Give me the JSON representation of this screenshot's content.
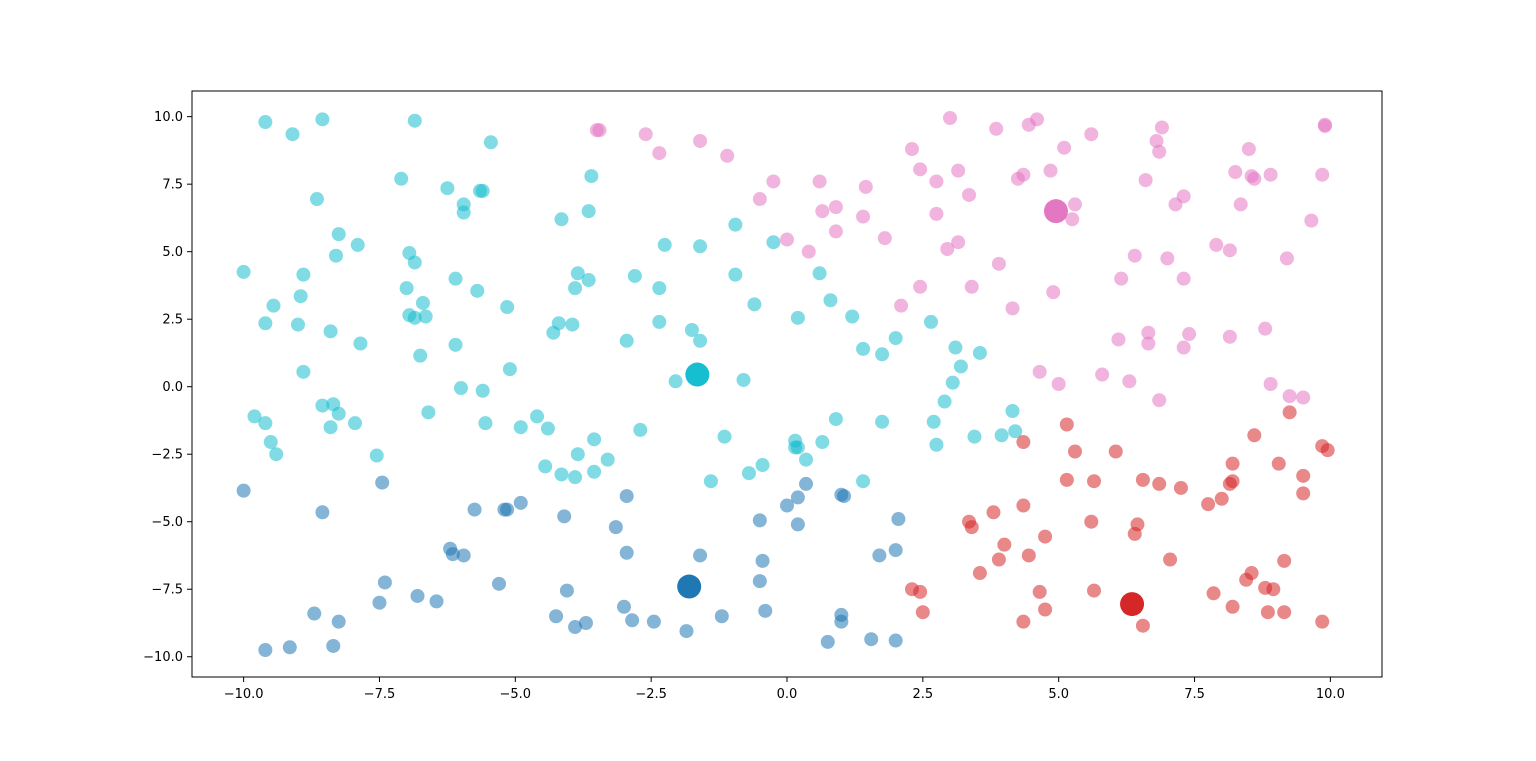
{
  "chart_data": {
    "type": "scatter",
    "title": "",
    "xlabel": "",
    "ylabel": "",
    "xlim": [
      -10.95,
      10.95
    ],
    "ylim": [
      -10.75,
      10.95
    ],
    "xticks": [
      -10.0,
      -7.5,
      -5.0,
      -2.5,
      0.0,
      2.5,
      5.0,
      7.5,
      10.0
    ],
    "yticks": [
      -10.0,
      -7.5,
      -5.0,
      -2.5,
      0.0,
      2.5,
      5.0,
      7.5,
      10.0
    ],
    "xtick_labels": [
      "−10.0",
      "−7.5",
      "−5.0",
      "−2.5",
      "0.0",
      "2.5",
      "5.0",
      "7.5",
      "10.0"
    ],
    "ytick_labels": [
      "−10.0",
      "−7.5",
      "−5.0",
      "−2.5",
      "0.0",
      "2.5",
      "5.0",
      "7.5",
      "10.0"
    ],
    "grid": false,
    "point_opacity": 0.55,
    "centroid_opacity": 1.0,
    "series": [
      {
        "color": "#17becf",
        "centroid": [
          -1.65,
          0.45
        ],
        "points": [
          [
            -9.6,
            9.8
          ],
          [
            -9.1,
            9.35
          ],
          [
            -8.55,
            9.9
          ],
          [
            -6.85,
            9.85
          ],
          [
            -5.45,
            9.05
          ],
          [
            -8.65,
            6.95
          ],
          [
            -7.1,
            7.7
          ],
          [
            -6.25,
            7.35
          ],
          [
            -5.95,
            6.75
          ],
          [
            -5.95,
            6.45
          ],
          [
            -5.65,
            7.25
          ],
          [
            -5.6,
            7.25
          ],
          [
            -3.6,
            7.8
          ],
          [
            -3.65,
            6.5
          ],
          [
            -4.15,
            6.2
          ],
          [
            -10.0,
            4.25
          ],
          [
            -8.25,
            5.65
          ],
          [
            -7.9,
            5.25
          ],
          [
            -8.3,
            4.85
          ],
          [
            -8.9,
            4.15
          ],
          [
            -6.95,
            4.95
          ],
          [
            -6.85,
            4.6
          ],
          [
            -6.1,
            4.0
          ],
          [
            -5.7,
            3.55
          ],
          [
            -3.85,
            4.2
          ],
          [
            -3.9,
            3.65
          ],
          [
            -3.65,
            3.95
          ],
          [
            -2.8,
            4.1
          ],
          [
            -2.35,
            3.65
          ],
          [
            -2.25,
            5.25
          ],
          [
            -1.6,
            5.2
          ],
          [
            -0.95,
            6.0
          ],
          [
            -0.95,
            4.15
          ],
          [
            -0.25,
            5.35
          ],
          [
            0.6,
            4.2
          ],
          [
            0.8,
            3.2
          ],
          [
            -0.6,
            3.05
          ],
          [
            -9.45,
            3.0
          ],
          [
            -9.6,
            2.35
          ],
          [
            -9.0,
            2.3
          ],
          [
            -8.95,
            3.35
          ],
          [
            -8.4,
            2.05
          ],
          [
            -7.85,
            1.6
          ],
          [
            -6.95,
            2.65
          ],
          [
            -6.85,
            2.55
          ],
          [
            -6.7,
            3.1
          ],
          [
            -6.65,
            2.6
          ],
          [
            -7.0,
            3.65
          ],
          [
            -5.15,
            2.95
          ],
          [
            -4.2,
            2.35
          ],
          [
            -3.95,
            2.3
          ],
          [
            -4.3,
            2.0
          ],
          [
            -2.95,
            1.7
          ],
          [
            -2.35,
            2.4
          ],
          [
            -1.75,
            2.1
          ],
          [
            -1.6,
            1.7
          ],
          [
            0.2,
            2.55
          ],
          [
            1.2,
            2.6
          ],
          [
            2.65,
            2.4
          ],
          [
            -6.75,
            1.15
          ],
          [
            -6.1,
            1.55
          ],
          [
            -8.9,
            0.55
          ],
          [
            -5.1,
            0.65
          ],
          [
            -2.05,
            0.2
          ],
          [
            -0.8,
            0.25
          ],
          [
            1.4,
            1.4
          ],
          [
            1.75,
            1.2
          ],
          [
            2.0,
            1.8
          ],
          [
            3.1,
            1.45
          ],
          [
            3.2,
            0.75
          ],
          [
            3.05,
            0.15
          ],
          [
            3.55,
            1.25
          ],
          [
            -6.0,
            -0.05
          ],
          [
            -5.6,
            -0.15
          ],
          [
            -9.8,
            -1.1
          ],
          [
            -9.6,
            -1.35
          ],
          [
            -8.55,
            -0.7
          ],
          [
            -8.35,
            -0.65
          ],
          [
            -8.25,
            -1.0
          ],
          [
            -8.4,
            -1.5
          ],
          [
            -7.95,
            -1.35
          ],
          [
            -9.5,
            -2.05
          ],
          [
            -9.4,
            -2.5
          ],
          [
            -6.6,
            -0.95
          ],
          [
            -5.55,
            -1.35
          ],
          [
            -4.9,
            -1.5
          ],
          [
            -4.6,
            -1.1
          ],
          [
            -4.4,
            -1.55
          ],
          [
            -3.55,
            -1.95
          ],
          [
            -3.85,
            -2.5
          ],
          [
            -2.7,
            -1.6
          ],
          [
            -1.15,
            -1.85
          ],
          [
            0.15,
            -2.0
          ],
          [
            0.15,
            -2.25
          ],
          [
            0.2,
            -2.25
          ],
          [
            0.65,
            -2.05
          ],
          [
            0.9,
            -1.2
          ],
          [
            1.75,
            -1.3
          ],
          [
            2.9,
            -0.55
          ],
          [
            2.7,
            -1.3
          ],
          [
            2.75,
            -2.15
          ],
          [
            3.45,
            -1.85
          ],
          [
            3.95,
            -1.8
          ],
          [
            4.15,
            -0.9
          ],
          [
            4.2,
            -1.65
          ],
          [
            -7.55,
            -2.55
          ],
          [
            -4.45,
            -2.95
          ],
          [
            -4.15,
            -3.25
          ],
          [
            -3.9,
            -3.35
          ],
          [
            -3.55,
            -3.15
          ],
          [
            -3.3,
            -2.7
          ],
          [
            -1.4,
            -3.5
          ],
          [
            -0.7,
            -3.2
          ],
          [
            -0.45,
            -2.9
          ],
          [
            0.35,
            -2.7
          ],
          [
            1.4,
            -3.5
          ]
        ]
      },
      {
        "color": "#e377c2",
        "centroid": [
          4.95,
          6.5
        ],
        "points": [
          [
            -3.5,
            9.5
          ],
          [
            -3.45,
            9.5
          ],
          [
            -2.6,
            9.35
          ],
          [
            -2.35,
            8.65
          ],
          [
            -1.6,
            9.1
          ],
          [
            -1.1,
            8.55
          ],
          [
            -0.5,
            6.95
          ],
          [
            -0.25,
            7.6
          ],
          [
            0.0,
            5.45
          ],
          [
            0.4,
            5.0
          ],
          [
            0.6,
            7.6
          ],
          [
            0.65,
            6.5
          ],
          [
            0.9,
            6.65
          ],
          [
            0.9,
            5.75
          ],
          [
            1.4,
            6.3
          ],
          [
            1.45,
            7.4
          ],
          [
            1.8,
            5.5
          ],
          [
            2.1,
            3.0
          ],
          [
            2.3,
            8.8
          ],
          [
            2.45,
            8.05
          ],
          [
            2.45,
            3.7
          ],
          [
            2.75,
            7.6
          ],
          [
            2.75,
            6.4
          ],
          [
            2.95,
            5.1
          ],
          [
            3.0,
            9.95
          ],
          [
            3.15,
            8.0
          ],
          [
            3.15,
            5.35
          ],
          [
            3.35,
            7.1
          ],
          [
            3.4,
            3.7
          ],
          [
            3.85,
            9.55
          ],
          [
            3.9,
            4.55
          ],
          [
            4.15,
            2.9
          ],
          [
            4.25,
            7.7
          ],
          [
            4.35,
            7.85
          ],
          [
            4.45,
            9.7
          ],
          [
            4.6,
            9.9
          ],
          [
            4.65,
            0.55
          ],
          [
            4.85,
            8.0
          ],
          [
            4.9,
            3.5
          ],
          [
            5.0,
            0.1
          ],
          [
            5.1,
            8.85
          ],
          [
            5.25,
            6.2
          ],
          [
            5.3,
            6.75
          ],
          [
            5.6,
            9.35
          ],
          [
            5.8,
            0.45
          ],
          [
            6.1,
            1.75
          ],
          [
            6.15,
            4.0
          ],
          [
            6.3,
            0.2
          ],
          [
            6.4,
            4.85
          ],
          [
            6.6,
            7.65
          ],
          [
            6.65,
            1.6
          ],
          [
            6.65,
            2.0
          ],
          [
            6.8,
            9.1
          ],
          [
            6.85,
            8.7
          ],
          [
            6.85,
            -0.5
          ],
          [
            6.9,
            9.6
          ],
          [
            7.0,
            4.75
          ],
          [
            7.15,
            6.75
          ],
          [
            7.3,
            7.05
          ],
          [
            7.3,
            4.0
          ],
          [
            7.3,
            1.45
          ],
          [
            7.4,
            1.95
          ],
          [
            7.9,
            5.25
          ],
          [
            8.15,
            5.05
          ],
          [
            8.15,
            1.85
          ],
          [
            8.25,
            7.95
          ],
          [
            8.35,
            6.75
          ],
          [
            8.5,
            8.8
          ],
          [
            8.55,
            7.8
          ],
          [
            8.6,
            7.7
          ],
          [
            8.8,
            2.15
          ],
          [
            8.9,
            7.85
          ],
          [
            8.9,
            0.1
          ],
          [
            9.2,
            4.75
          ],
          [
            9.25,
            -0.35
          ],
          [
            9.5,
            -0.4
          ],
          [
            9.65,
            6.15
          ],
          [
            9.85,
            7.85
          ],
          [
            9.9,
            9.65
          ],
          [
            9.9,
            9.7
          ]
        ]
      },
      {
        "color": "#1f77b4",
        "centroid": [
          -1.8,
          -7.4
        ],
        "points": [
          [
            -10.0,
            -3.85
          ],
          [
            -8.55,
            -4.65
          ],
          [
            -7.45,
            -3.55
          ],
          [
            -7.4,
            -7.25
          ],
          [
            -7.5,
            -8.0
          ],
          [
            -8.7,
            -8.4
          ],
          [
            -8.25,
            -8.7
          ],
          [
            -8.35,
            -9.6
          ],
          [
            -9.6,
            -9.75
          ],
          [
            -9.15,
            -9.65
          ],
          [
            -6.8,
            -7.75
          ],
          [
            -6.45,
            -7.95
          ],
          [
            -6.2,
            -6.0
          ],
          [
            -6.15,
            -6.2
          ],
          [
            -5.95,
            -6.25
          ],
          [
            -5.75,
            -4.55
          ],
          [
            -5.3,
            -7.3
          ],
          [
            -5.15,
            -4.55
          ],
          [
            -5.2,
            -4.55
          ],
          [
            -4.9,
            -4.3
          ],
          [
            -4.1,
            -4.8
          ],
          [
            -4.05,
            -7.55
          ],
          [
            -4.25,
            -8.5
          ],
          [
            -3.9,
            -8.9
          ],
          [
            -3.7,
            -8.75
          ],
          [
            -3.15,
            -5.2
          ],
          [
            -2.95,
            -4.05
          ],
          [
            -2.95,
            -6.15
          ],
          [
            -3.0,
            -8.15
          ],
          [
            -2.85,
            -8.65
          ],
          [
            -2.45,
            -8.7
          ],
          [
            -1.85,
            -9.05
          ],
          [
            -1.6,
            -6.25
          ],
          [
            -1.2,
            -8.5
          ],
          [
            -0.5,
            -4.95
          ],
          [
            -0.5,
            -7.2
          ],
          [
            -0.45,
            -6.45
          ],
          [
            -0.4,
            -8.3
          ],
          [
            0.0,
            -4.4
          ],
          [
            0.2,
            -4.1
          ],
          [
            0.2,
            -5.1
          ],
          [
            0.35,
            -3.6
          ],
          [
            1.0,
            -4.0
          ],
          [
            1.05,
            -4.05
          ],
          [
            1.0,
            -8.45
          ],
          [
            1.0,
            -8.7
          ],
          [
            0.75,
            -9.45
          ],
          [
            1.55,
            -9.35
          ],
          [
            1.7,
            -6.25
          ],
          [
            2.0,
            -9.4
          ],
          [
            2.05,
            -4.9
          ],
          [
            2.0,
            -6.05
          ]
        ]
      },
      {
        "color": "#d62728",
        "centroid": [
          6.35,
          -8.05
        ],
        "points": [
          [
            4.35,
            -2.05
          ],
          [
            5.15,
            -1.4
          ],
          [
            5.3,
            -2.4
          ],
          [
            5.15,
            -3.45
          ],
          [
            6.05,
            -2.4
          ],
          [
            5.65,
            -3.5
          ],
          [
            6.55,
            -3.45
          ],
          [
            6.85,
            -3.6
          ],
          [
            7.25,
            -3.75
          ],
          [
            7.75,
            -4.35
          ],
          [
            8.0,
            -4.15
          ],
          [
            8.15,
            -3.6
          ],
          [
            8.2,
            -3.5
          ],
          [
            8.2,
            -2.85
          ],
          [
            8.6,
            -1.8
          ],
          [
            9.05,
            -2.85
          ],
          [
            9.25,
            -0.95
          ],
          [
            9.5,
            -3.3
          ],
          [
            9.5,
            -3.95
          ],
          [
            9.85,
            -2.2
          ],
          [
            9.95,
            -2.35
          ],
          [
            3.35,
            -5.0
          ],
          [
            3.4,
            -5.2
          ],
          [
            3.8,
            -4.65
          ],
          [
            4.35,
            -4.4
          ],
          [
            4.0,
            -5.85
          ],
          [
            3.55,
            -6.9
          ],
          [
            3.9,
            -6.4
          ],
          [
            4.45,
            -6.25
          ],
          [
            4.75,
            -5.55
          ],
          [
            5.6,
            -5.0
          ],
          [
            6.4,
            -5.45
          ],
          [
            6.45,
            -5.1
          ],
          [
            7.05,
            -6.4
          ],
          [
            2.3,
            -7.5
          ],
          [
            2.45,
            -7.6
          ],
          [
            2.5,
            -8.35
          ],
          [
            4.65,
            -7.6
          ],
          [
            4.75,
            -8.25
          ],
          [
            4.35,
            -8.7
          ],
          [
            5.65,
            -7.55
          ],
          [
            6.55,
            -8.85
          ],
          [
            7.85,
            -7.65
          ],
          [
            8.2,
            -8.15
          ],
          [
            8.45,
            -7.15
          ],
          [
            8.55,
            -6.9
          ],
          [
            8.8,
            -7.45
          ],
          [
            8.95,
            -7.5
          ],
          [
            8.85,
            -8.35
          ],
          [
            9.15,
            -6.45
          ],
          [
            9.15,
            -8.35
          ],
          [
            9.85,
            -8.7
          ]
        ]
      }
    ]
  }
}
